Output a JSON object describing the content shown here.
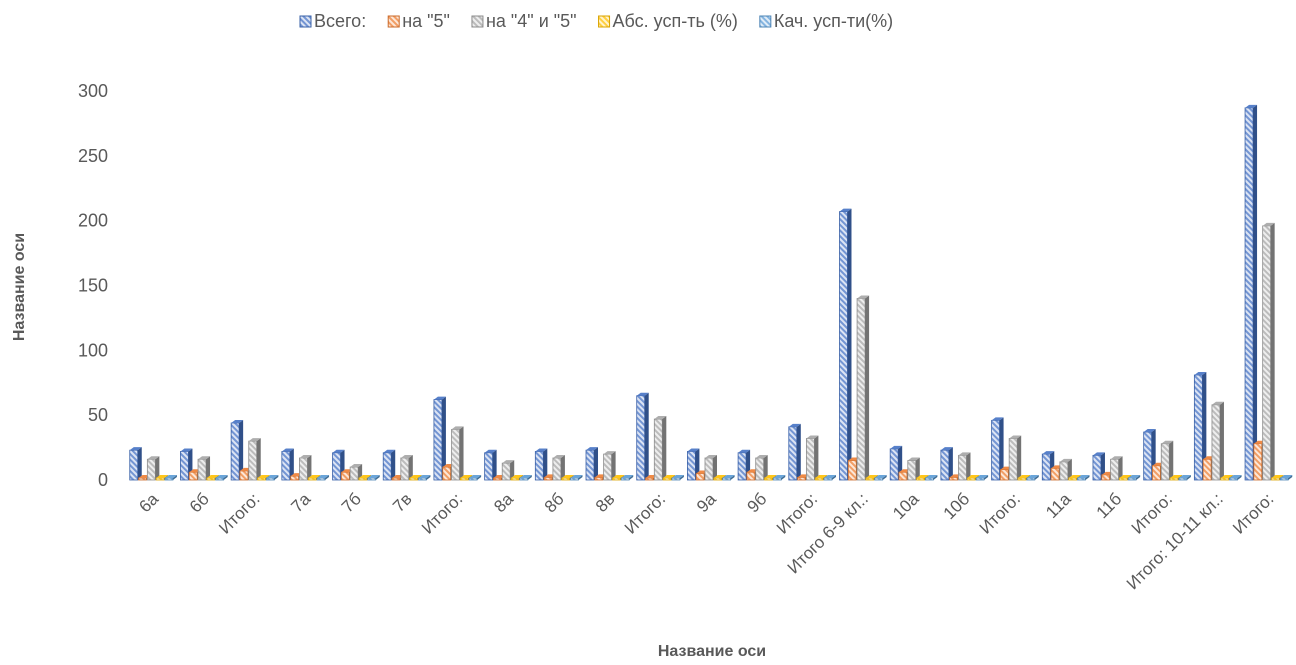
{
  "chart_data": {
    "type": "bar",
    "title": "",
    "xlabel": "Название оси",
    "ylabel": "Название оси",
    "ylim": [
      0,
      300
    ],
    "yticks": [
      0,
      50,
      100,
      150,
      200,
      250,
      300
    ],
    "grid": false,
    "legend_position": "top",
    "categories": [
      "6а",
      "6б",
      "Итого:",
      "7а",
      "7б",
      "7в",
      "Итого:",
      "8а",
      "8б",
      "8в",
      "Итого:",
      "9а",
      "9б",
      "Итого:",
      "Итого 6-9 кл.:",
      "10а",
      "10б",
      "Итого:",
      "11а",
      "11б",
      "Итого:",
      "Итого: 10-11 кл.:",
      "Итого:"
    ],
    "series": [
      {
        "name": "Всего:",
        "color": "#4472C4",
        "values": [
          23,
          22,
          44,
          22,
          21,
          21,
          62,
          21,
          22,
          23,
          65,
          22,
          21,
          41,
          207,
          24,
          23,
          46,
          20,
          19,
          37,
          81,
          287
        ]
      },
      {
        "name": "на \"5\"",
        "color": "#ED7D31",
        "values": [
          1,
          6,
          7,
          3,
          6,
          1,
          10,
          1,
          2,
          2,
          1,
          5,
          6,
          2,
          15,
          6,
          2,
          8,
          9,
          4,
          11,
          16,
          28
        ]
      },
      {
        "name": "на \"4\" и \"5\"",
        "color": "#A5A5A5",
        "values": [
          16,
          16,
          30,
          17,
          10,
          17,
          39,
          13,
          17,
          20,
          47,
          17,
          17,
          32,
          140,
          15,
          19,
          32,
          14,
          16,
          28,
          58,
          196
        ]
      },
      {
        "name": "Абс. усп-ть (%)",
        "color": "#FFC000",
        "values": [
          1,
          1,
          1,
          1,
          1,
          1,
          1,
          1,
          1,
          1,
          1,
          1,
          1,
          1,
          1,
          1,
          1,
          1,
          1,
          1,
          1,
          1,
          1
        ]
      },
      {
        "name": "Кач. усп-ти(%)",
        "color": "#5B9BD5",
        "values": [
          1,
          1,
          1,
          1,
          1,
          1,
          1,
          1,
          1,
          1,
          1,
          1,
          1,
          1,
          1,
          1,
          1,
          1,
          1,
          1,
          1,
          1,
          1
        ]
      }
    ]
  }
}
